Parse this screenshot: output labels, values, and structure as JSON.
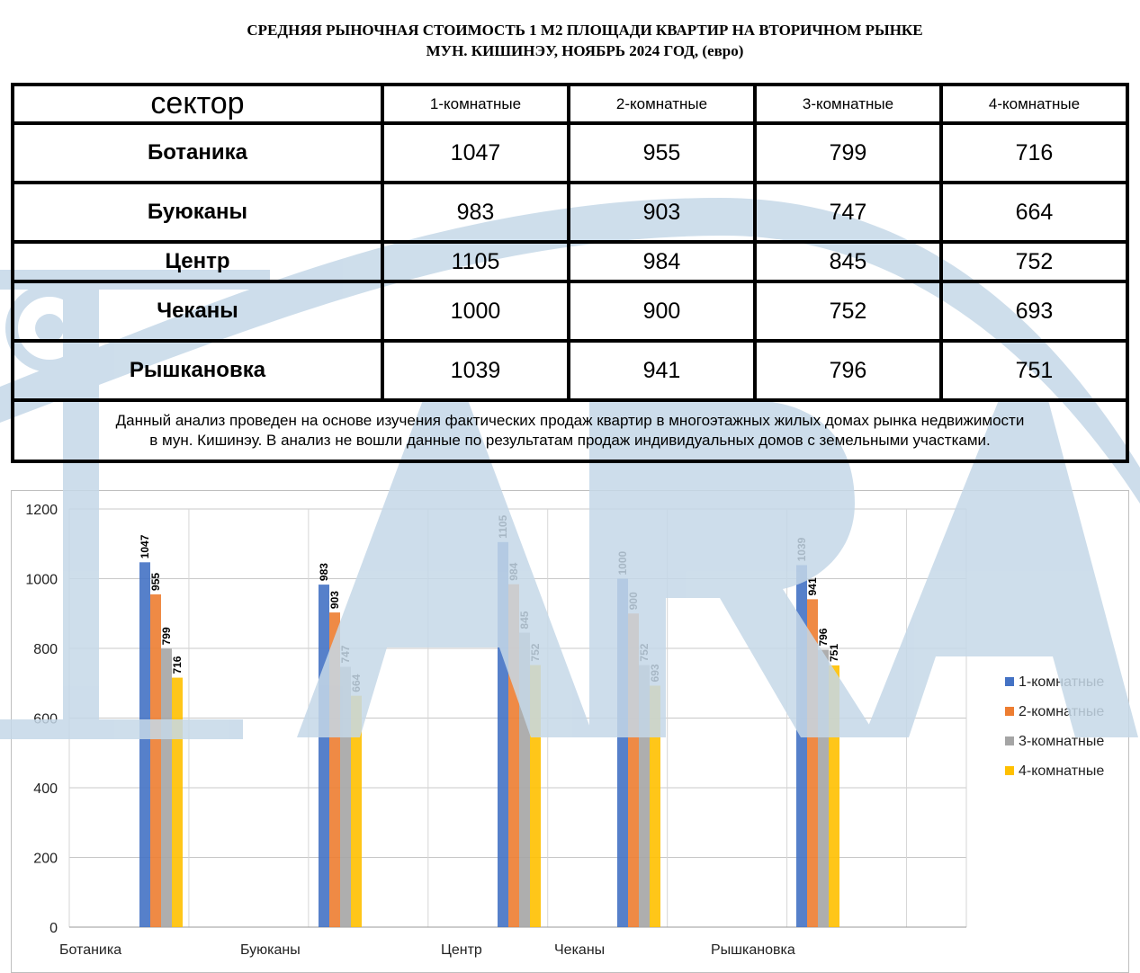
{
  "header": {
    "title_line1": "СРЕДНЯЯ  РЫНОЧНАЯ  СТОИМОСТЬ  1 М2  ПЛОЩАДИ  КВАРТИР НА ВТОРИЧНОМ РЫНКЕ",
    "title_line2": "МУН.  КИШИНЭУ, НОЯБРЬ 2024 ГОД, (евро)"
  },
  "table": {
    "headers": [
      "сектор",
      "1-комнатные",
      "2-комнатные",
      "3-комнатные",
      "4-комнатные"
    ],
    "rows": [
      {
        "sector": "Ботаника",
        "values": [
          "1047",
          "955",
          "799",
          "716"
        ]
      },
      {
        "sector": "Буюканы",
        "values": [
          "983",
          "903",
          "747",
          "664"
        ]
      },
      {
        "sector": "Центр",
        "values": [
          "1105",
          "984",
          "845",
          "752"
        ]
      },
      {
        "sector": "Чеканы",
        "values": [
          "1000",
          "900",
          "752",
          "693"
        ]
      },
      {
        "sector": "Рышкановка",
        "values": [
          "1039",
          "941",
          "796",
          "751"
        ]
      }
    ],
    "note_line1": "Данный анализ проведен на основе изучения фактических продаж квартир в многоэтажных жилых домах рынка недвижимости",
    "note_line2": "в мун. Кишинэу. В анализ не вошли данные по результатам  продаж индивидуальных домов с земельными участками."
  },
  "watermark": {
    "text": "LARA",
    "color": "#c5d8e8"
  },
  "chart_data": {
    "type": "bar",
    "categories": [
      "Ботаника",
      "Буюканы",
      "Центр",
      "Чеканы",
      "Рышкановка"
    ],
    "series": [
      {
        "name": "1-комнатные",
        "color": "#4472c4",
        "values": [
          1047,
          983,
          1105,
          1000,
          1039
        ]
      },
      {
        "name": "2-комнатные",
        "color": "#ed7d31",
        "values": [
          955,
          903,
          984,
          900,
          941
        ]
      },
      {
        "name": "3-комнатные",
        "color": "#a5a5a5",
        "values": [
          799,
          747,
          845,
          752,
          796
        ]
      },
      {
        "name": "4-комнатные",
        "color": "#ffc000",
        "values": [
          716,
          664,
          752,
          693,
          751
        ]
      }
    ],
    "ylim": [
      0,
      1200
    ],
    "yticks": [
      0,
      200,
      400,
      600,
      800,
      1000,
      1200
    ],
    "grid": true,
    "legend": "right",
    "data_labels": true
  }
}
